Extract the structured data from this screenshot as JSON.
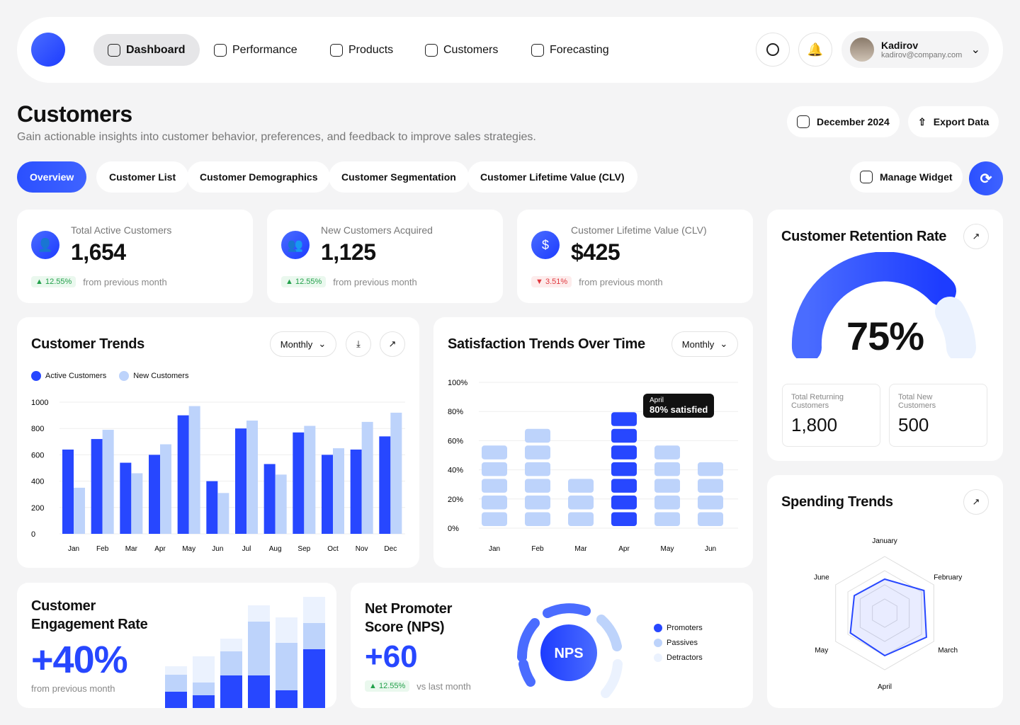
{
  "nav": {
    "items": [
      {
        "label": "Dashboard",
        "icon": "grid-icon",
        "active": true
      },
      {
        "label": "Performance",
        "icon": "chart-line-icon"
      },
      {
        "label": "Products",
        "icon": "bag-icon"
      },
      {
        "label": "Customers",
        "icon": "users-icon"
      },
      {
        "label": "Forecasting",
        "icon": "forecast-icon"
      }
    ],
    "user": {
      "name": "Kadirov",
      "email": "kadirov@company.com"
    }
  },
  "page": {
    "title": "Customers",
    "subtitle": "Gain actionable insights into customer behavior, preferences, and feedback to improve sales strategies.",
    "date": "December 2024",
    "export": "Export Data",
    "manage": "Manage Widget"
  },
  "tabs": [
    "Overview",
    "Customer List",
    "Customer Demographics",
    "Customer Segmentation",
    "Customer Lifetime Value (CLV)"
  ],
  "stats": [
    {
      "title": "Total Active Customers",
      "value": "1,654",
      "change": "12.55%",
      "dir": "up",
      "note": "from previous month",
      "icon": "user-icon"
    },
    {
      "title": "New Customers Acquired",
      "value": "1,125",
      "change": "12.55%",
      "dir": "up",
      "note": "from previous month",
      "icon": "users-icon"
    },
    {
      "title": "Customer Lifetime Value (CLV)",
      "value": "$425",
      "change": "3.51%",
      "dir": "down",
      "note": "from previous month",
      "icon": "dollar-cycle-icon"
    }
  ],
  "trends": {
    "title": "Customer Trends",
    "period": "Monthly"
  },
  "satisfaction": {
    "title": "Satisfaction Trends Over Time",
    "period": "Monthly",
    "tooltip_title": "April",
    "tooltip_value": "80% satisfied"
  },
  "retention": {
    "title": "Customer Retention Rate",
    "value": "75%",
    "returning_label": "Total Returning Customers",
    "returning": "1,800",
    "new_label": "Total New Customers",
    "new": "500"
  },
  "engagement": {
    "title": "Customer Engagement Rate",
    "value": "+40%",
    "note": "from previous month"
  },
  "nps": {
    "title": "Net Promoter Score (NPS)",
    "value": "+60",
    "change": "12.55%",
    "note": "vs last month",
    "center": "NPS",
    "legend": [
      "Promoters",
      "Passives",
      "Detractors"
    ]
  },
  "spending": {
    "title": "Spending Trends"
  },
  "colors": {
    "accent": "#2747ff",
    "light": "#bdd3fb",
    "lighter": "#ebf2fe"
  },
  "chart_data": [
    {
      "type": "bar",
      "id": "customer-trends",
      "categories": [
        "Jan",
        "Feb",
        "Mar",
        "Apr",
        "May",
        "Jun",
        "Jul",
        "Aug",
        "Sep",
        "Oct",
        "Nov",
        "Dec"
      ],
      "ylim": [
        0,
        1000
      ],
      "yticks": [
        0,
        200,
        400,
        600,
        800,
        1000
      ],
      "series": [
        {
          "name": "Active Customers",
          "values": [
            640,
            720,
            540,
            600,
            900,
            400,
            800,
            530,
            770,
            600,
            640,
            740
          ]
        },
        {
          "name": "New Customers",
          "values": [
            350,
            790,
            460,
            680,
            970,
            310,
            860,
            450,
            820,
            650,
            850,
            920
          ]
        }
      ],
      "grid": true,
      "legend": "top-left"
    },
    {
      "type": "bar",
      "id": "satisfaction",
      "categories": [
        "Jan",
        "Feb",
        "Mar",
        "Apr",
        "May",
        "Jun"
      ],
      "ylim": [
        0,
        100
      ],
      "yticks": [
        "0%",
        "20%",
        "40%",
        "60%",
        "80%",
        "100%"
      ],
      "values": [
        57,
        69,
        34,
        80,
        57,
        46
      ],
      "highlight": "Apr",
      "grid": true
    },
    {
      "type": "bar",
      "id": "engagement",
      "stacked": true,
      "values": [
        [
          23,
          24,
          12
        ],
        [
          18,
          18,
          37
        ],
        [
          46,
          34,
          18
        ],
        [
          46,
          76,
          23
        ],
        [
          25,
          67,
          36
        ],
        [
          83,
          37,
          37
        ]
      ]
    },
    {
      "type": "pie",
      "id": "nps",
      "categories": [
        "Promoters",
        "Passives",
        "Detractors"
      ],
      "values": [
        60,
        20,
        20
      ]
    },
    {
      "type": "radar",
      "id": "spending",
      "categories": [
        "January",
        "February",
        "March",
        "April",
        "May",
        "June"
      ],
      "values": [
        60,
        80,
        85,
        75,
        70,
        62
      ]
    }
  ]
}
